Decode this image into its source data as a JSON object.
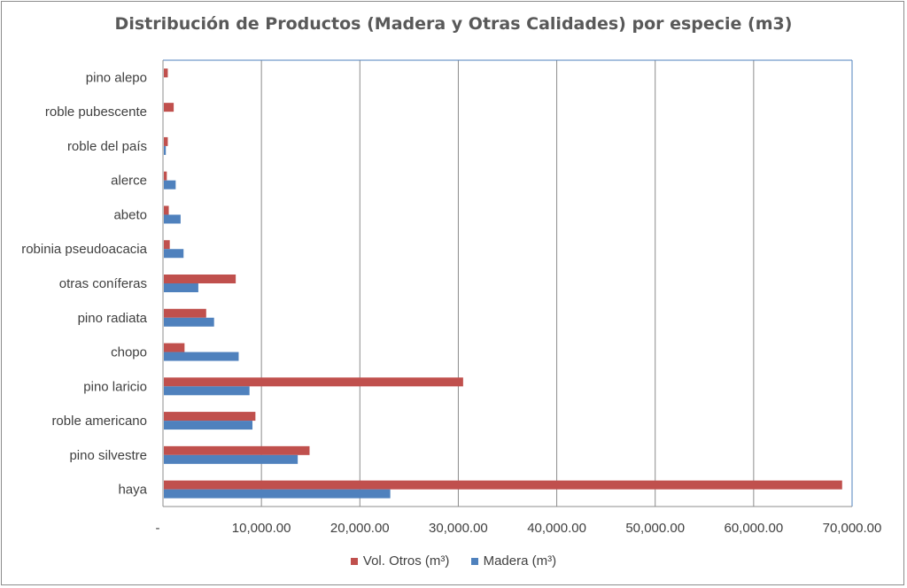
{
  "chart_data": {
    "type": "bar",
    "orientation": "horizontal",
    "title": "Distribución de Productos (Madera y Otras Calidades) por especie (m3)",
    "categories": [
      "haya",
      "pino silvestre",
      "roble americano",
      "pino laricio",
      "chopo",
      "pino radiata",
      "otras coníferas",
      "robinia pseudoacacia",
      "abeto",
      "alerce",
      "roble del país",
      "roble pubescente",
      "pino alepo"
    ],
    "series": [
      {
        "name": "Vol. Otros (m³)",
        "color": "#c0504d",
        "values": [
          68900,
          14800,
          9300,
          30400,
          2100,
          4300,
          7300,
          600,
          500,
          300,
          400,
          1000,
          400
        ]
      },
      {
        "name": "Madera (m³)",
        "color": "#4f81bd",
        "values": [
          23000,
          13600,
          9000,
          8700,
          7600,
          5100,
          3500,
          2000,
          1700,
          1200,
          200,
          0,
          0
        ]
      }
    ],
    "xlim": [
      0,
      70000
    ],
    "xticks": [
      0,
      10000,
      20000,
      30000,
      40000,
      50000,
      60000,
      70000
    ],
    "xtick_labels": [
      "-",
      "10,000.00",
      "20,000.00",
      "30,000.00",
      "40,000.00",
      "50,000.00",
      "60,000.00",
      "70,000.00"
    ],
    "xlabel": "",
    "ylabel": "",
    "grid": "vertical",
    "legend_position": "bottom",
    "legend": [
      "Vol. Otros (m³)",
      "Madera (m³)"
    ]
  }
}
